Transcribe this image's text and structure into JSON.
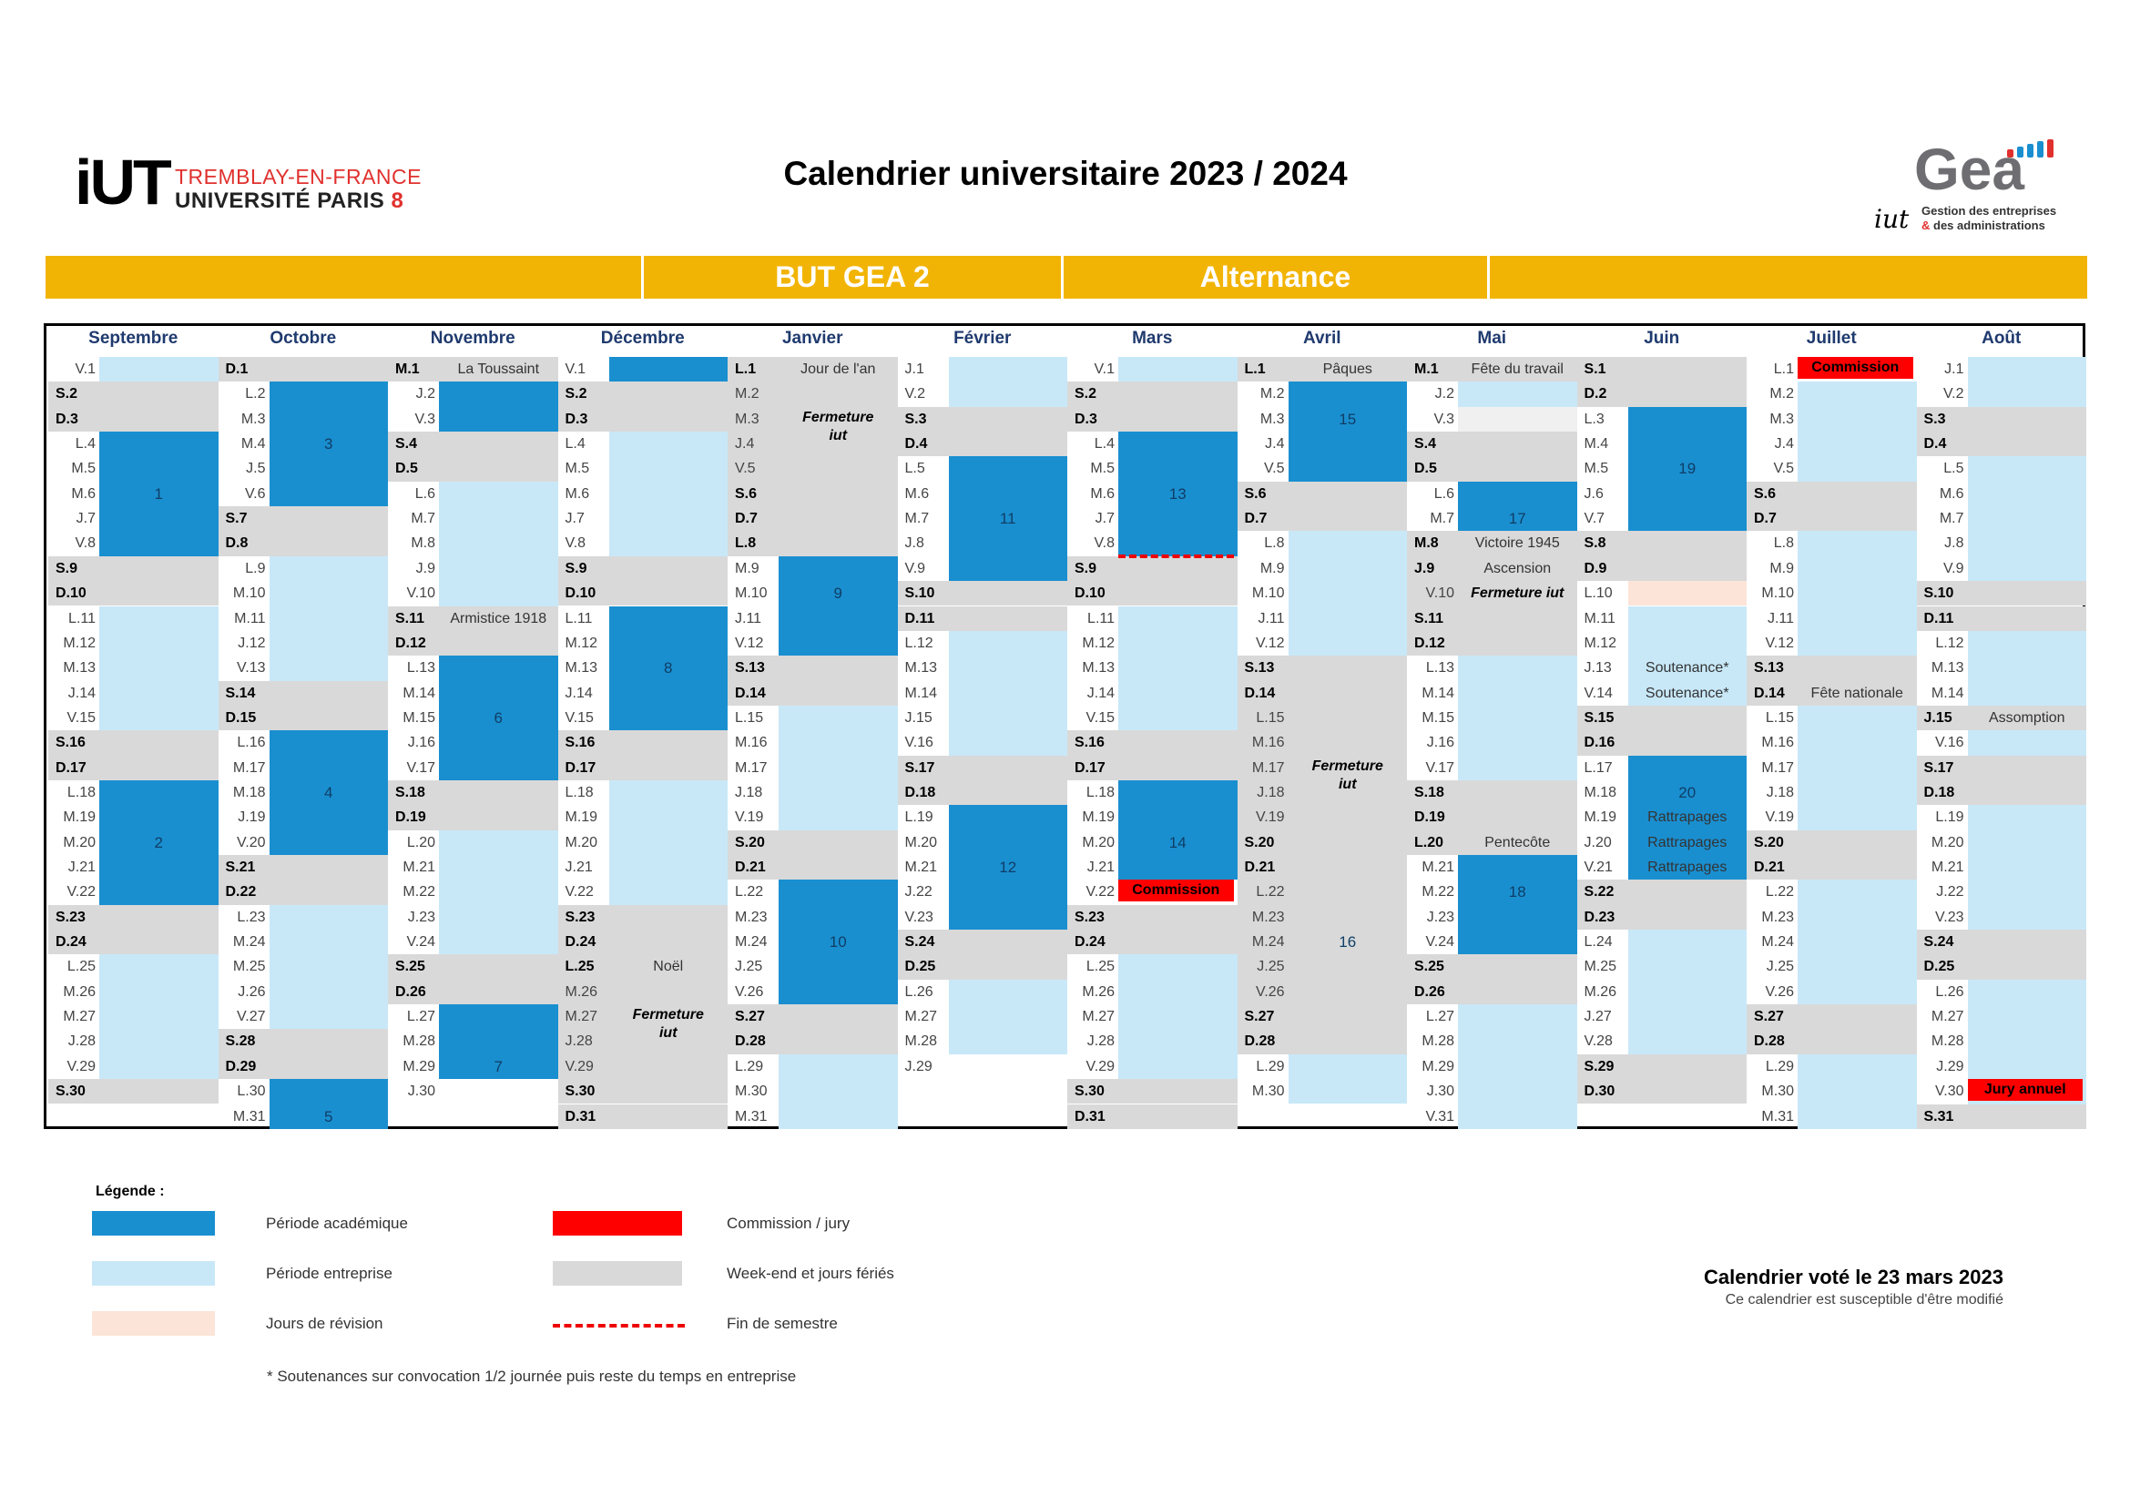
{
  "header": {
    "logo_left": {
      "mark": "iUT",
      "line1": "TREMBLAY-EN-FRANCE",
      "line2": "UNIVERSITÉ PARIS",
      "line2_num": "8"
    },
    "title": "Calendrier universitaire 2023 / 2024",
    "logo_right": {
      "word": "Gea",
      "iut": "iut",
      "sub_line1": "Gestion des entreprises",
      "sub_amp": "&",
      "sub_line2": "des administrations"
    }
  },
  "banner": {
    "program": "BUT GEA 2",
    "mode": "Alternance",
    "color": "#f2b404"
  },
  "colors": {
    "academic": "#1a8fd0",
    "enterprise": "#c8e8f8",
    "weekend": "#d9d9d9",
    "revision": "#fce4d8",
    "commission": "#ff0000",
    "semester_line": "#e00000"
  },
  "calendar": {
    "months": [
      {
        "name": "Septembre",
        "days": [
          "V.1",
          "S.2",
          "D.3",
          "L.4",
          "M.5",
          "M.6",
          "J.7",
          "V.8",
          "S.9",
          "D.10",
          "L.11",
          "M.12",
          "M.13",
          "J.14",
          "V.15",
          "S.16",
          "D.17",
          "L.18",
          "M.19",
          "M.20",
          "J.21",
          "V.22",
          "S.23",
          "D.24",
          "L.25",
          "M.26",
          "M.27",
          "J.28",
          "V.29",
          "S.30"
        ]
      },
      {
        "name": "Octobre",
        "days": [
          "D.1",
          "L.2",
          "M.3",
          "M.4",
          "J.5",
          "V.6",
          "S.7",
          "D.8",
          "L.9",
          "M.10",
          "M.11",
          "J.12",
          "V.13",
          "S.14",
          "D.15",
          "L.16",
          "M.17",
          "M.18",
          "J.19",
          "V.20",
          "S.21",
          "D.22",
          "L.23",
          "M.24",
          "M.25",
          "J.26",
          "V.27",
          "S.28",
          "D.29",
          "L.30",
          "M.31"
        ]
      },
      {
        "name": "Novembre",
        "days": [
          "M.1",
          "J.2",
          "V.3",
          "S.4",
          "D.5",
          "L.6",
          "M.7",
          "M.8",
          "J.9",
          "V.10",
          "S.11",
          "D.12",
          "L.13",
          "M.14",
          "M.15",
          "J.16",
          "V.17",
          "S.18",
          "D.19",
          "L.20",
          "M.21",
          "M.22",
          "J.23",
          "V.24",
          "S.25",
          "D.26",
          "L.27",
          "M.28",
          "M.29",
          "J.30"
        ]
      },
      {
        "name": "Décembre",
        "days": [
          "V.1",
          "S.2",
          "D.3",
          "L.4",
          "M.5",
          "M.6",
          "J.7",
          "V.8",
          "S.9",
          "D.10",
          "L.11",
          "M.12",
          "M.13",
          "J.14",
          "V.15",
          "S.16",
          "D.17",
          "L.18",
          "M.19",
          "M.20",
          "J.21",
          "V.22",
          "S.23",
          "D.24",
          "L.25",
          "M.26",
          "M.27",
          "J.28",
          "V.29",
          "S.30",
          "D.31"
        ]
      },
      {
        "name": "Janvier",
        "days": [
          "L.1",
          "M.2",
          "M.3",
          "J.4",
          "V.5",
          "S.6",
          "D.7",
          "L.8",
          "M.9",
          "M.10",
          "J.11",
          "V.12",
          "S.13",
          "D.14",
          "L.15",
          "M.16",
          "M.17",
          "J.18",
          "V.19",
          "S.20",
          "D.21",
          "L.22",
          "M.23",
          "M.24",
          "J.25",
          "V.26",
          "S.27",
          "D.28",
          "L.29",
          "M.30",
          "M.31"
        ]
      },
      {
        "name": "Février",
        "days": [
          "J.1",
          "V.2",
          "S.3",
          "D.4",
          "L.5",
          "M.6",
          "M.7",
          "J.8",
          "V.9",
          "S.10",
          "D.11",
          "L.12",
          "M.13",
          "M.14",
          "J.15",
          "V.16",
          "S.17",
          "D.18",
          "L.19",
          "M.20",
          "M.21",
          "J.22",
          "V.23",
          "S.24",
          "D.25",
          "L.26",
          "M.27",
          "M.28",
          "J.29"
        ]
      },
      {
        "name": "Mars",
        "days": [
          "V.1",
          "S.2",
          "D.3",
          "L.4",
          "M.5",
          "M.6",
          "J.7",
          "V.8",
          "S.9",
          "D.10",
          "L.11",
          "M.12",
          "M.13",
          "J.14",
          "V.15",
          "S.16",
          "D.17",
          "L.18",
          "M.19",
          "M.20",
          "J.21",
          "V.22",
          "S.23",
          "D.24",
          "L.25",
          "M.26",
          "M.27",
          "J.28",
          "V.29",
          "S.30",
          "D.31"
        ]
      },
      {
        "name": "Avril",
        "days": [
          "L.1",
          "M.2",
          "M.3",
          "J.4",
          "V.5",
          "S.6",
          "D.7",
          "L.8",
          "M.9",
          "M.10",
          "J.11",
          "V.12",
          "S.13",
          "D.14",
          "L.15",
          "M.16",
          "M.17",
          "J.18",
          "V.19",
          "S.20",
          "D.21",
          "L.22",
          "M.23",
          "M.24",
          "J.25",
          "V.26",
          "S.27",
          "D.28",
          "L.29",
          "M.30"
        ]
      },
      {
        "name": "Mai",
        "days": [
          "M.1",
          "J.2",
          "V.3",
          "S.4",
          "D.5",
          "L.6",
          "M.7",
          "M.8",
          "J.9",
          "V.10",
          "S.11",
          "D.12",
          "L.13",
          "M.14",
          "M.15",
          "J.16",
          "V.17",
          "S.18",
          "D.19",
          "L.20",
          "M.21",
          "M.22",
          "J.23",
          "V.24",
          "S.25",
          "D.26",
          "L.27",
          "M.28",
          "M.29",
          "J.30",
          "V.31"
        ]
      },
      {
        "name": "Juin",
        "days": [
          "S.1",
          "D.2",
          "L.3",
          "M.4",
          "M.5",
          "J.6",
          "V.7",
          "S.8",
          "D.9",
          "L.10",
          "M.11",
          "M.12",
          "J.13",
          "V.14",
          "S.15",
          "D.16",
          "L.17",
          "M.18",
          "M.19",
          "J.20",
          "V.21",
          "S.22",
          "D.23",
          "L.24",
          "M.25",
          "M.26",
          "J.27",
          "V.28",
          "S.29",
          "D.30"
        ]
      },
      {
        "name": "Juillet",
        "days": [
          "L.1",
          "M.2",
          "M.3",
          "J.4",
          "V.5",
          "S.6",
          "D.7",
          "L.8",
          "M.9",
          "M.10",
          "J.11",
          "V.12",
          "S.13",
          "D.14",
          "L.15",
          "M.16",
          "M.17",
          "J.18",
          "V.19",
          "S.20",
          "D.21",
          "L.22",
          "M.23",
          "M.24",
          "J.25",
          "V.26",
          "S.27",
          "D.28",
          "L.29",
          "M.30",
          "M.31"
        ]
      },
      {
        "name": "Août",
        "days": [
          "J.1",
          "V.2",
          "S.3",
          "D.4",
          "L.5",
          "M.6",
          "M.7",
          "J.8",
          "V.9",
          "S.10",
          "D.11",
          "L.12",
          "M.13",
          "M.14",
          "J.15",
          "V.16",
          "S.17",
          "D.18",
          "L.19",
          "M.20",
          "M.21",
          "J.22",
          "V.23",
          "S.24",
          "D.25",
          "L.26",
          "M.27",
          "M.28",
          "J.29",
          "V.30",
          "S.31"
        ]
      }
    ],
    "bold_days": [
      [
        2,
        3,
        9,
        10,
        16,
        17,
        23,
        24,
        30
      ],
      [
        1,
        7,
        8,
        14,
        15,
        21,
        22,
        28,
        29
      ],
      [
        1,
        4,
        5,
        11,
        12,
        18,
        19,
        25,
        26
      ],
      [
        2,
        3,
        9,
        10,
        16,
        17,
        23,
        24,
        25,
        30,
        31
      ],
      [
        1,
        6,
        7,
        8,
        13,
        14,
        20,
        21,
        27,
        28
      ],
      [
        3,
        4,
        10,
        11,
        17,
        18,
        24,
        25
      ],
      [
        2,
        3,
        9,
        10,
        16,
        17,
        23,
        24,
        30,
        31
      ],
      [
        1,
        6,
        7,
        13,
        14,
        20,
        21,
        27,
        28
      ],
      [
        1,
        4,
        5,
        8,
        9,
        11,
        12,
        18,
        19,
        20,
        25,
        26
      ],
      [
        1,
        2,
        8,
        9,
        15,
        16,
        22,
        23,
        29,
        30
      ],
      [
        6,
        7,
        13,
        14,
        20,
        21,
        27,
        28
      ],
      [
        3,
        4,
        10,
        11,
        15,
        17,
        18,
        24,
        25,
        31
      ]
    ],
    "week_numbers": [
      {
        "label": "1",
        "m": 0,
        "d": 6
      },
      {
        "label": "2",
        "m": 0,
        "d": 20
      },
      {
        "label": "3",
        "m": 1,
        "d": 4
      },
      {
        "label": "4",
        "m": 1,
        "d": 18
      },
      {
        "label": "5",
        "m": 1,
        "d": 31
      },
      {
        "label": "6",
        "m": 2,
        "d": 15
      },
      {
        "label": "7",
        "m": 2,
        "d": 29
      },
      {
        "label": "8",
        "m": 3,
        "d": 13
      },
      {
        "label": "9",
        "m": 4,
        "d": 10
      },
      {
        "label": "10",
        "m": 4,
        "d": 24
      },
      {
        "label": "11",
        "m": 5,
        "d": 7
      },
      {
        "label": "12",
        "m": 5,
        "d": 21
      },
      {
        "label": "13",
        "m": 6,
        "d": 6
      },
      {
        "label": "14",
        "m": 6,
        "d": 20
      },
      {
        "label": "15",
        "m": 7,
        "d": 3
      },
      {
        "label": "16",
        "m": 7,
        "d": 24
      },
      {
        "label": "17",
        "m": 8,
        "d": 7
      },
      {
        "label": "18",
        "m": 8,
        "d": 22
      },
      {
        "label": "19",
        "m": 9,
        "d": 5
      },
      {
        "label": "20",
        "m": 9,
        "d": 18
      }
    ],
    "annotations": [
      {
        "m": 2,
        "d": 1,
        "text": "La Toussaint"
      },
      {
        "m": 2,
        "d": 11,
        "text": "Armistice 1918"
      },
      {
        "m": 3,
        "d": 25,
        "text": "Noël"
      },
      {
        "m": 4,
        "d": 1,
        "text": "Jour de l'an"
      },
      {
        "m": 7,
        "d": 1,
        "text": "Pâques"
      },
      {
        "m": 8,
        "d": 1,
        "text": "Fête du travail"
      },
      {
        "m": 8,
        "d": 8,
        "text": "Victoire 1945"
      },
      {
        "m": 8,
        "d": 9,
        "text": "Ascension"
      },
      {
        "m": 8,
        "d": 20,
        "text": "Pentecôte"
      },
      {
        "m": 9,
        "d": 13,
        "text": "Soutenance*"
      },
      {
        "m": 9,
        "d": 14,
        "text": "Soutenance*"
      },
      {
        "m": 9,
        "d": 19,
        "text": "Rattrapages"
      },
      {
        "m": 9,
        "d": 20,
        "text": "Rattrapages"
      },
      {
        "m": 9,
        "d": 21,
        "text": "Rattrapages"
      },
      {
        "m": 10,
        "d": 14,
        "text": "Fête nationale"
      },
      {
        "m": 11,
        "d": 15,
        "text": "Assomption"
      }
    ],
    "closures": [
      {
        "m": 3,
        "text_line1": "Fermeture",
        "text_line2": "iut"
      },
      {
        "m": 4,
        "text_line1": "Fermeture",
        "text_line2": "iut"
      },
      {
        "m": 7,
        "text_line1": "Fermeture",
        "text_line2": "iut"
      },
      {
        "m": 8,
        "text_line1": "Fermeture iut",
        "text_line2": ""
      }
    ],
    "commissions": [
      {
        "m": 10,
        "d": 1,
        "text": "Commission"
      },
      {
        "m": 6,
        "d": 22,
        "text": "Commission"
      },
      {
        "m": 11,
        "d": 30,
        "text": "Jury annuel"
      }
    ]
  },
  "legend": {
    "title": "Légende :",
    "items": [
      {
        "label": "Période académique",
        "color": "#1a8fd0"
      },
      {
        "label": "Période entreprise",
        "color": "#c8e8f8"
      },
      {
        "label": "Jours de révision",
        "color": "#fce4d8"
      },
      {
        "label": "Commission / jury",
        "color": "#ff0000"
      },
      {
        "label": "Week-end et jours fériés",
        "color": "#d9d9d9"
      },
      {
        "label": "Fin de semestre",
        "color": "#e00000"
      }
    ],
    "note": "* Soutenances sur convocation 1/2 journée puis reste du temps en entreprise"
  },
  "vote": {
    "title": "Calendrier voté le 23 mars 2023",
    "subtitle": "Ce calendrier est susceptible d'être modifié"
  }
}
